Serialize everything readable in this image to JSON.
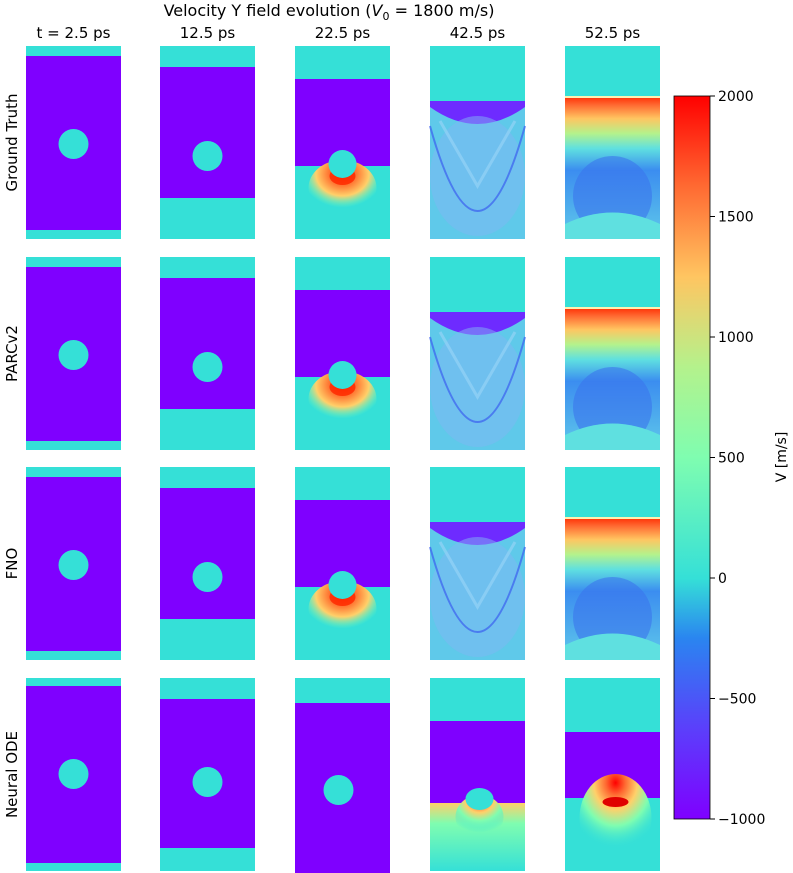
{
  "chart_data": {
    "type": "heatmap",
    "title_prefix": "Velocity Y field evolution (",
    "title_math_symbol": "V",
    "title_math_subscript": "0",
    "title_suffix": " = 1800 m/s)",
    "columns": [
      "t = 2.5 ps",
      "12.5 ps",
      "22.5 ps",
      "42.5 ps",
      "52.5 ps"
    ],
    "rows": [
      "Ground Truth",
      "PARCv2",
      "FNO",
      "Neural ODE"
    ],
    "colorbar": {
      "label": "V [m/s]",
      "min": -1000,
      "max": 2000,
      "ticks": [
        2000,
        1500,
        1000,
        500,
        0,
        -500,
        -1000
      ],
      "tick_labels": [
        "2000",
        "1500",
        "1000",
        "500",
        "0",
        "−500",
        "−1000"
      ],
      "colormap": "rainbow"
    },
    "colors": {
      "background_zero": "#35E0D7",
      "negative_min": "#7F00FF",
      "blue_mid": "#3A8BF0",
      "green": "#7FFDB0",
      "yellow": "#FFD06A",
      "orange": "#FF7A35",
      "red_max": "#FF0000"
    }
  }
}
